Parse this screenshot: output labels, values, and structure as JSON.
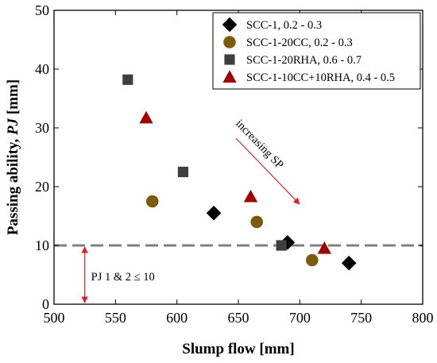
{
  "chart_data": {
    "type": "scatter",
    "xlabel": "Slump flow [mm]",
    "ylabel_prefix": "Passing ability, ",
    "ylabel_italic": "PJ",
    "ylabel_suffix": " [mm]",
    "xlim": [
      500,
      800
    ],
    "ylim": [
      0,
      50
    ],
    "xticks": [
      500,
      550,
      600,
      650,
      700,
      750,
      800
    ],
    "yticks": [
      0,
      10,
      20,
      30,
      40,
      50
    ],
    "grid": false,
    "legend_position": "top-right",
    "series": [
      {
        "name": "SCC-1, 0.2 - 0.3",
        "marker": "diamond",
        "color": "#000000",
        "points": [
          [
            630,
            15.5
          ],
          [
            690,
            10.5
          ],
          [
            740,
            7
          ]
        ]
      },
      {
        "name": "SCC-1-20CC, 0.2 - 0.3",
        "marker": "circle",
        "color": "#7a5c0a",
        "points": [
          [
            580,
            17.5
          ],
          [
            665,
            14
          ],
          [
            710,
            7.5
          ]
        ]
      },
      {
        "name": "SCC-1-20RHA, 0.6 - 0.7",
        "marker": "square",
        "color": "#3f3f3f",
        "points": [
          [
            560,
            38.2
          ],
          [
            605,
            22.5
          ],
          [
            685,
            10
          ]
        ]
      },
      {
        "name": "SCC-1-10CC+10RHA, 0.4 - 0.5",
        "marker": "triangle",
        "color": "#a00000",
        "points": [
          [
            575,
            31.7
          ],
          [
            660,
            18.3
          ],
          [
            720,
            9.5
          ]
        ]
      }
    ],
    "reference_line": {
      "y": 10,
      "color": "#808080"
    },
    "annotations": {
      "sp_text": "increasing SP",
      "sp_arrow": {
        "from": [
          573,
          31
        ],
        "to": [
          700,
          17
        ]
      },
      "pj_text": "PJ 1 & 2 ≤ 10",
      "pj_arrow": {
        "x": 525,
        "y_from": 10,
        "y_to": 0
      }
    }
  }
}
